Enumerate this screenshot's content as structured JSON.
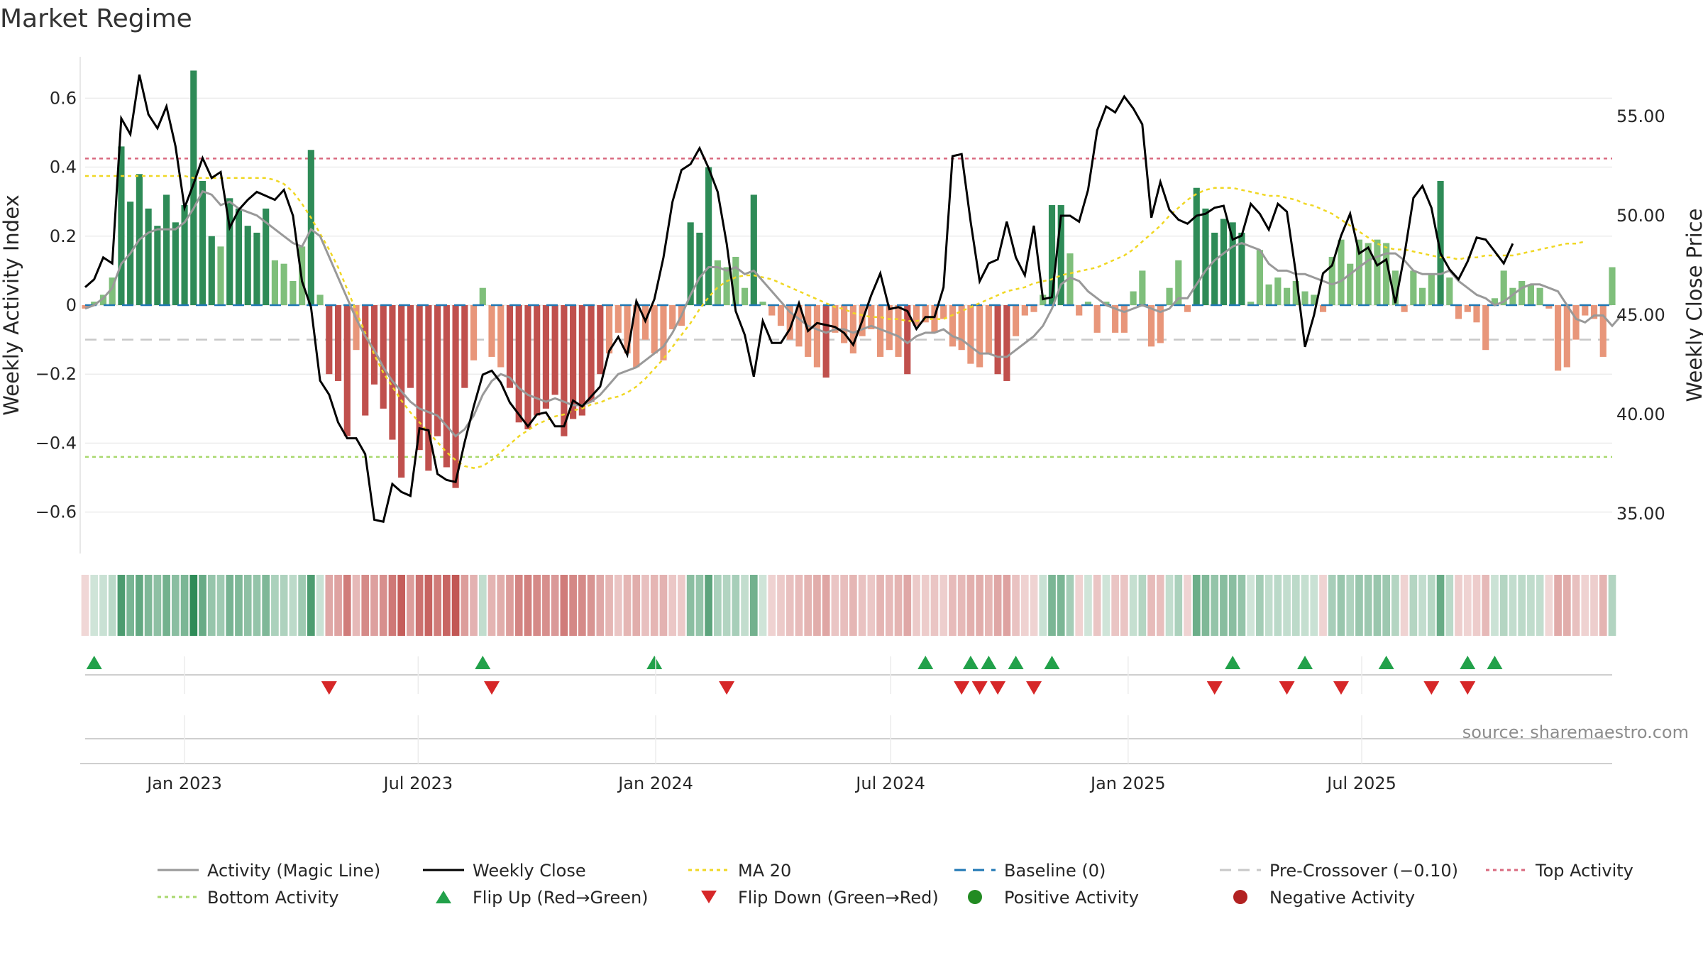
{
  "title": "Market Regime",
  "source": "source: sharemaestro.com",
  "colors": {
    "strong_green": "#2e8b57",
    "light_green": "#7fbf7b",
    "strong_red": "#c0504d",
    "light_red": "#e8967a",
    "magic": "#999999",
    "close": "#000000",
    "ma": "#f0d723",
    "baseline": "#1f77b4",
    "pre": "#c8c8c8",
    "top": "#d9697f",
    "bottom": "#a9d86e",
    "flip_up": "#22a14a",
    "flip_down": "#d62728",
    "pos_dot": "#228b22",
    "neg_dot": "#b22222"
  },
  "chart_data": {
    "type": "bar",
    "start_date": "2022-10-16",
    "x_ticks": [
      "Jan 2023",
      "Jul 2023",
      "Jan 2024",
      "Jul 2024",
      "Jan 2025",
      "Jul 2025"
    ],
    "y_left": {
      "label": "Weekly Activity Index",
      "lim": [
        -0.72,
        0.72
      ],
      "ticks": [
        0.6,
        0.4,
        0.2,
        0,
        -0.2,
        -0.4,
        -0.6
      ],
      "tick_labels": [
        "0.6",
        "0.4",
        "0.2",
        "0",
        "−0.2",
        "−0.4",
        "−0.6"
      ]
    },
    "y_right": {
      "label": "Weekly Close Price",
      "lim": [
        33.0,
        58.0
      ],
      "ticks": [
        55,
        50,
        45,
        40,
        35
      ],
      "tick_labels": [
        "55.00",
        "50.00",
        "45.00",
        "40.00",
        "35.00"
      ]
    },
    "reference_lines": {
      "top_activity": 0.425,
      "bottom_activity": -0.44,
      "pre_crossover": -0.1,
      "baseline": 0
    },
    "activity": [
      -0.01,
      0.01,
      0.03,
      0.08,
      0.46,
      0.3,
      0.38,
      0.28,
      0.23,
      0.32,
      0.24,
      0.29,
      0.68,
      0.36,
      0.2,
      0.17,
      0.31,
      0.28,
      0.23,
      0.21,
      0.28,
      0.13,
      0.12,
      0.07,
      0.17,
      0.45,
      0.03,
      -0.2,
      -0.22,
      -0.38,
      -0.13,
      -0.32,
      -0.23,
      -0.3,
      -0.39,
      -0.5,
      -0.24,
      -0.42,
      -0.48,
      -0.38,
      -0.47,
      -0.53,
      -0.24,
      -0.16,
      0.05,
      -0.15,
      -0.18,
      -0.24,
      -0.34,
      -0.36,
      -0.32,
      -0.3,
      -0.26,
      -0.38,
      -0.33,
      -0.32,
      -0.28,
      -0.2,
      -0.14,
      -0.08,
      -0.14,
      -0.18,
      -0.1,
      -0.14,
      -0.16,
      -0.07,
      -0.06,
      0.24,
      0.21,
      0.4,
      0.13,
      0.11,
      0.14,
      0.05,
      0.32,
      0.01,
      -0.03,
      -0.06,
      -0.1,
      -0.12,
      -0.15,
      -0.18,
      -0.21,
      -0.08,
      -0.11,
      -0.14,
      -0.09,
      -0.07,
      -0.15,
      -0.13,
      -0.15,
      -0.2,
      -0.06,
      -0.05,
      -0.08,
      -0.04,
      -0.12,
      -0.13,
      -0.17,
      -0.18,
      -0.14,
      -0.2,
      -0.22,
      -0.09,
      -0.03,
      -0.02,
      0.03,
      0.29,
      0.29,
      0.15,
      -0.03,
      0.01,
      -0.08,
      0.01,
      -0.08,
      -0.08,
      0.04,
      0.1,
      -0.12,
      -0.11,
      0.05,
      0.13,
      -0.02,
      0.34,
      0.28,
      0.21,
      0.25,
      0.24,
      0.21,
      0.01,
      0.16,
      0.06,
      0.08,
      0.05,
      0.07,
      0.04,
      0.03,
      -0.02,
      0.14,
      0.19,
      0.12,
      0.19,
      0.18,
      0.19,
      0.18,
      0.1,
      -0.02,
      0.1,
      0.05,
      0.09,
      0.36,
      0.08,
      -0.04,
      -0.02,
      -0.05,
      -0.13,
      0.02,
      0.1,
      0.05,
      0.07,
      0.06,
      0.05,
      -0.01,
      -0.19,
      -0.18,
      -0.1,
      -0.03,
      -0.04,
      -0.15,
      0.11
    ],
    "weekly_close": [
      46.4,
      46.8,
      47.9,
      47.6,
      54.9,
      54.1,
      57.1,
      55.1,
      54.4,
      55.5,
      53.5,
      50.4,
      51.6,
      52.9,
      51.9,
      52.2,
      49.4,
      50.3,
      50.8,
      51.2,
      51.0,
      50.8,
      51.3,
      50.0,
      46.7,
      45.4,
      41.7,
      41.0,
      39.6,
      38.8,
      38.8,
      38.0,
      34.7,
      34.6,
      36.5,
      36.1,
      35.9,
      39.3,
      39.2,
      37.0,
      36.7,
      36.6,
      38.6,
      40.4,
      42.0,
      42.2,
      41.6,
      40.6,
      40.0,
      39.4,
      40.0,
      40.1,
      39.4,
      39.4,
      40.7,
      40.4,
      40.9,
      41.4,
      43.2,
      43.9,
      43.0,
      45.7,
      44.7,
      45.8,
      47.9,
      50.7,
      52.3,
      52.6,
      53.4,
      52.4,
      51.2,
      48.6,
      45.2,
      44.0,
      41.9,
      44.7,
      43.6,
      43.6,
      44.3,
      45.6,
      44.2,
      44.6,
      44.5,
      44.4,
      44.1,
      43.5,
      44.7,
      46.0,
      47.1,
      45.3,
      45.4,
      45.2,
      44.3,
      44.9,
      44.9,
      46.4,
      53.0,
      53.1,
      49.7,
      46.7,
      47.6,
      47.8,
      49.7,
      47.9,
      47.0,
      49.5,
      45.8,
      45.9,
      50.0,
      50.0,
      49.7,
      51.3,
      54.3,
      55.5,
      55.2,
      56.0,
      55.4,
      54.6,
      49.9,
      51.7,
      50.3,
      49.8,
      49.6,
      50.0,
      50.1,
      50.4,
      50.5,
      48.8,
      49.0,
      50.6,
      50.1,
      49.3,
      50.6,
      50.2,
      47.1,
      43.4,
      45.0,
      47.1,
      47.5,
      49.0,
      50.1,
      48.1,
      48.4,
      47.5,
      47.8,
      45.6,
      48.0,
      50.9,
      51.5,
      50.4,
      48.1,
      47.3,
      46.8,
      47.7,
      48.9,
      48.8,
      48.2,
      47.6,
      48.6
    ],
    "magic_line": [
      -0.01,
      0.0,
      0.02,
      0.05,
      0.12,
      0.15,
      0.19,
      0.21,
      0.22,
      0.22,
      0.22,
      0.24,
      0.28,
      0.33,
      0.32,
      0.29,
      0.3,
      0.28,
      0.27,
      0.26,
      0.24,
      0.22,
      0.2,
      0.18,
      0.17,
      0.22,
      0.2,
      0.14,
      0.08,
      0.02,
      -0.04,
      -0.09,
      -0.13,
      -0.18,
      -0.22,
      -0.25,
      -0.28,
      -0.3,
      -0.31,
      -0.32,
      -0.35,
      -0.38,
      -0.36,
      -0.32,
      -0.26,
      -0.22,
      -0.2,
      -0.21,
      -0.24,
      -0.26,
      -0.27,
      -0.28,
      -0.27,
      -0.28,
      -0.29,
      -0.29,
      -0.28,
      -0.26,
      -0.23,
      -0.2,
      -0.19,
      -0.18,
      -0.16,
      -0.14,
      -0.12,
      -0.08,
      -0.03,
      0.03,
      0.08,
      0.11,
      0.11,
      0.1,
      0.11,
      0.09,
      0.1,
      0.07,
      0.04,
      0.01,
      -0.02,
      -0.04,
      -0.06,
      -0.07,
      -0.08,
      -0.07,
      -0.07,
      -0.08,
      -0.07,
      -0.06,
      -0.07,
      -0.08,
      -0.09,
      -0.11,
      -0.09,
      -0.08,
      -0.08,
      -0.07,
      -0.09,
      -0.1,
      -0.12,
      -0.14,
      -0.14,
      -0.15,
      -0.15,
      -0.13,
      -0.11,
      -0.09,
      -0.06,
      -0.01,
      0.06,
      0.08,
      0.07,
      0.04,
      0.02,
      0.0,
      -0.01,
      -0.02,
      -0.01,
      0.0,
      -0.01,
      -0.02,
      -0.01,
      0.02,
      0.02,
      0.06,
      0.1,
      0.13,
      0.15,
      0.17,
      0.18,
      0.17,
      0.16,
      0.12,
      0.1,
      0.1,
      0.09,
      0.09,
      0.08,
      0.07,
      0.06,
      0.07,
      0.09,
      0.11,
      0.13,
      0.14,
      0.15,
      0.15,
      0.13,
      0.1,
      0.09,
      0.09,
      0.09,
      0.1,
      0.07,
      0.05,
      0.03,
      0.02,
      0.0,
      0.01,
      0.03,
      0.05,
      0.06,
      0.06,
      0.05,
      0.04,
      0.0,
      -0.04,
      -0.05,
      -0.03,
      -0.03,
      -0.06,
      -0.03
    ],
    "ma20": [
      52.0,
      52.0,
      52.0,
      52.0,
      52.0,
      52.0,
      52.0,
      52.0,
      52.0,
      52.0,
      52.0,
      52.0,
      51.9,
      51.9,
      51.9,
      51.9,
      51.9,
      51.9,
      51.9,
      51.9,
      51.9,
      51.8,
      51.6,
      51.2,
      50.6,
      49.9,
      49.1,
      48.3,
      47.4,
      46.3,
      45.2,
      44.1,
      43.0,
      42.1,
      41.4,
      40.7,
      40.1,
      39.6,
      39.1,
      38.6,
      38.1,
      37.7,
      37.4,
      37.3,
      37.4,
      37.7,
      38.1,
      38.5,
      38.9,
      39.2,
      39.5,
      39.7,
      39.9,
      40.0,
      40.2,
      40.3,
      40.5,
      40.6,
      40.8,
      40.9,
      41.1,
      41.4,
      41.8,
      42.3,
      42.8,
      43.4,
      44.0,
      44.6,
      45.3,
      45.9,
      46.4,
      46.7,
      46.9,
      47.0,
      47.0,
      46.9,
      46.8,
      46.6,
      46.4,
      46.2,
      46.0,
      45.8,
      45.6,
      45.4,
      45.3,
      45.1,
      45.0,
      44.9,
      44.9,
      44.8,
      44.8,
      44.7,
      44.7,
      44.8,
      44.8,
      44.8,
      45.0,
      45.2,
      45.4,
      45.6,
      45.8,
      46.0,
      46.2,
      46.3,
      46.4,
      46.6,
      46.7,
      46.8,
      47.0,
      47.1,
      47.2,
      47.3,
      47.4,
      47.6,
      47.8,
      48.0,
      48.3,
      48.7,
      49.1,
      49.5,
      50.0,
      50.4,
      50.8,
      51.1,
      51.3,
      51.4,
      51.4,
      51.4,
      51.3,
      51.2,
      51.1,
      51.0,
      51.0,
      50.9,
      50.8,
      50.6,
      50.5,
      50.3,
      50.1,
      49.8,
      49.5,
      49.2,
      48.9,
      48.6,
      48.4,
      48.3,
      48.3,
      48.2,
      48.1,
      48.0,
      47.9,
      47.9,
      47.8,
      47.9,
      47.9,
      48.0,
      48.0,
      48.0,
      48.0,
      48.1,
      48.2,
      48.3,
      48.4,
      48.5,
      48.6,
      48.6,
      48.7
    ],
    "flip_up_weeks": [
      1,
      44,
      63,
      93,
      98,
      100,
      103,
      107,
      127,
      135,
      144,
      153,
      156
    ],
    "flip_down_weeks": [
      27,
      45,
      71,
      97,
      99,
      101,
      105,
      125,
      133,
      139,
      149,
      153
    ],
    "legend": [
      {
        "label": "Activity (Magic Line)",
        "kind": "line",
        "color_key": "magic",
        "dash": ""
      },
      {
        "label": "Weekly Close",
        "kind": "line",
        "color_key": "close",
        "dash": ""
      },
      {
        "label": "MA 20",
        "kind": "line",
        "color_key": "ma",
        "dash": "5 5"
      },
      {
        "label": "Baseline (0)",
        "kind": "line",
        "color_key": "baseline",
        "dash": "16 10"
      },
      {
        "label": "Pre-Crossover (−0.10)",
        "kind": "line",
        "color_key": "pre",
        "dash": "16 10"
      },
      {
        "label": "Top Activity",
        "kind": "line",
        "color_key": "top",
        "dash": "5 5"
      },
      {
        "label": "Bottom Activity",
        "kind": "line",
        "color_key": "bottom",
        "dash": "5 5"
      },
      {
        "label": "Flip Up (Red→Green)",
        "kind": "up",
        "color_key": "flip_up",
        "dash": ""
      },
      {
        "label": "Flip Down (Green→Red)",
        "kind": "down",
        "color_key": "flip_down",
        "dash": ""
      },
      {
        "label": "Positive Activity",
        "kind": "dot",
        "color_key": "pos_dot",
        "dash": ""
      },
      {
        "label": "Negative Activity",
        "kind": "dot",
        "color_key": "neg_dot",
        "dash": ""
      }
    ]
  }
}
